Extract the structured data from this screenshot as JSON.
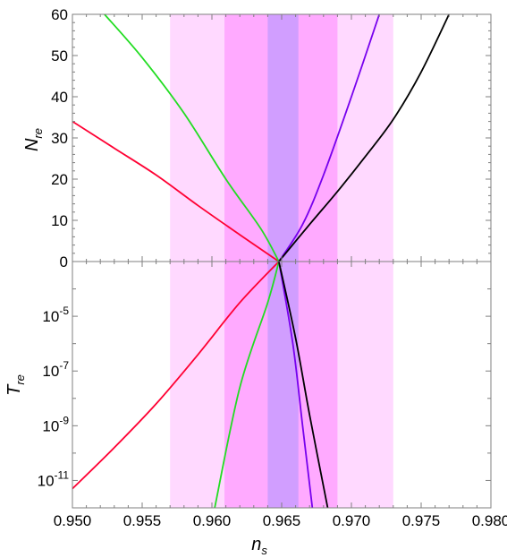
{
  "chart_data": {
    "type": "line",
    "x": {
      "label_main": "n",
      "label_sub": "s",
      "range": [
        0.95,
        0.98
      ],
      "ticks": [
        0.95,
        0.955,
        0.96,
        0.965,
        0.97,
        0.975,
        0.98
      ],
      "tick_labels": [
        "0.950",
        "0.955",
        "0.960",
        "0.965",
        "0.970",
        "0.975",
        "0.980"
      ]
    },
    "bands": [
      {
        "x_min": 0.957,
        "x_max": 0.973,
        "color": "#ffccff"
      },
      {
        "x_min": 0.9609,
        "x_max": 0.969,
        "color": "#ff99ff"
      },
      {
        "x_min": 0.964,
        "x_max": 0.9662,
        "color": "#c299ff"
      }
    ],
    "panels": [
      {
        "id": "top",
        "ylabel_main": "N",
        "ylabel_sub": "re",
        "scale": "linear",
        "ylim": [
          0,
          60
        ],
        "yticks": [
          0,
          10,
          20,
          30,
          40,
          50,
          60
        ],
        "ytick_labels": [
          "0",
          "10",
          "20",
          "30",
          "40",
          "50",
          "60"
        ],
        "series": [
          {
            "color": "#ff0033",
            "x": [
              0.95,
              0.953,
              0.956,
              0.959,
              0.962,
              0.9648
            ],
            "y": [
              34.0,
              27.5,
              21.0,
              13.6,
              6.5,
              0
            ]
          },
          {
            "color": "#22dd22",
            "x": [
              0.9523,
              0.955,
              0.958,
              0.961,
              0.9635,
              0.9648
            ],
            "y": [
              60,
              49.5,
              36.0,
              20.0,
              8.0,
              0
            ]
          },
          {
            "color": "#7700ee",
            "x": [
              0.9648,
              0.9665,
              0.968,
              0.97,
              0.972
            ],
            "y": [
              0,
              9.0,
              21.0,
              40.0,
              60
            ]
          },
          {
            "color": "#000000",
            "x": [
              0.9648,
              0.967,
              0.969,
              0.971,
              0.973,
              0.975,
              0.977
            ],
            "y": [
              0,
              9.0,
              17.0,
              25.5,
              34.5,
              46.0,
              60
            ]
          }
        ]
      },
      {
        "id": "bottom",
        "ylabel_main": "T",
        "ylabel_sub": "re",
        "scale": "log",
        "ylim_log10": [
          -12.0,
          -3.0
        ],
        "yticks_log10": [
          -11,
          -9,
          -7,
          -5
        ],
        "ytick_base": "10",
        "ytick_exponents": [
          "-11",
          "-9",
          "-7",
          "-5"
        ],
        "series": [
          {
            "color": "#ff0033",
            "x": [
              0.95,
              0.953,
              0.956,
              0.959,
              0.962,
              0.9648
            ],
            "log10_y": [
              -11.3,
              -9.8,
              -8.2,
              -6.4,
              -4.5,
              -3.0
            ]
          },
          {
            "color": "#22dd22",
            "x": [
              0.9602,
              0.962,
              0.964,
              0.9648
            ],
            "log10_y": [
              -12.0,
              -7.6,
              -4.5,
              -3.0
            ]
          },
          {
            "color": "#7700ee",
            "x": [
              0.9648,
              0.9658,
              0.9665,
              0.9672
            ],
            "log10_y": [
              -3.0,
              -6.0,
              -9.0,
              -12.0
            ]
          },
          {
            "color": "#000000",
            "x": [
              0.9648,
              0.966,
              0.967,
              0.9683
            ],
            "log10_y": [
              -3.0,
              -5.8,
              -8.6,
              -12.0
            ]
          }
        ]
      }
    ]
  }
}
